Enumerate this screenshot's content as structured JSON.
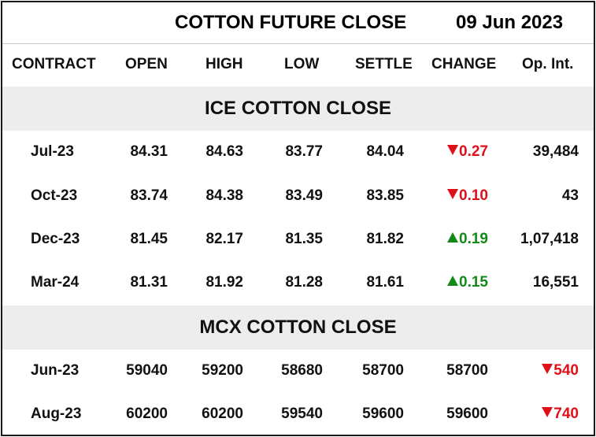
{
  "title": "COTTON FUTURE CLOSE",
  "date": "09 Jun 2023",
  "headers": [
    "CONTRACT",
    "OPEN",
    "HIGH",
    "LOW",
    "SETTLE",
    "CHANGE",
    "Op. Int."
  ],
  "colors": {
    "up": "#138a18",
    "down": "#e0101a",
    "band": "#ededed"
  },
  "sections": [
    {
      "label": "ICE COTTON CLOSE",
      "rows": [
        {
          "contract": "Jul-23",
          "open": "84.31",
          "high": "84.63",
          "low": "83.77",
          "settle": "84.04",
          "change": "0.27",
          "change_dir": "down",
          "oi": "39,484"
        },
        {
          "contract": "Oct-23",
          "open": "83.74",
          "high": "84.38",
          "low": "83.49",
          "settle": "83.85",
          "change": "0.10",
          "change_dir": "down",
          "oi": "43"
        },
        {
          "contract": "Dec-23",
          "open": "81.45",
          "high": "82.17",
          "low": "81.35",
          "settle": "81.82",
          "change": "0.19",
          "change_dir": "up",
          "oi": "1,07,418"
        },
        {
          "contract": "Mar-24",
          "open": "81.31",
          "high": "81.92",
          "low": "81.28",
          "settle": "81.61",
          "change": "0.15",
          "change_dir": "up",
          "oi": "16,551"
        }
      ]
    },
    {
      "label": "MCX COTTON CLOSE",
      "rows": [
        {
          "contract": "Jun-23",
          "open": "59040",
          "high": "59200",
          "low": "58680",
          "settle": "58700",
          "change": "58700",
          "oi": "540",
          "oi_dir": "down"
        },
        {
          "contract": "Aug-23",
          "open": "60200",
          "high": "60200",
          "low": "59540",
          "settle": "59600",
          "change": "59600",
          "oi": "740",
          "oi_dir": "down"
        }
      ]
    }
  ]
}
